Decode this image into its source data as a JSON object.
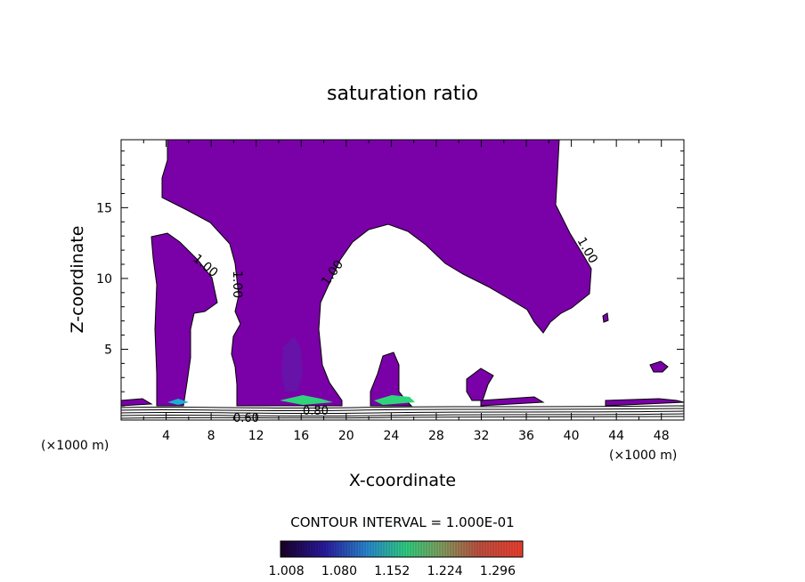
{
  "chart_data": {
    "type": "contour",
    "title": "saturation ratio",
    "xlabel": "X-coordinate",
    "ylabel": "Z-coordinate",
    "x_unit": "(×1000 m)",
    "xlim": [
      0,
      50
    ],
    "ylim": [
      0,
      19.8
    ],
    "x_ticks": [
      4,
      8,
      12,
      16,
      20,
      24,
      28,
      32,
      36,
      40,
      44,
      48
    ],
    "y_ticks": [
      5,
      10,
      15
    ],
    "contour_labels": [
      "1.00",
      "1.00",
      "1.00",
      "1.00",
      "0.60",
      "0.80"
    ],
    "contour_interval_text": "CONTOUR INTERVAL = 1.000E-01",
    "colorbar": {
      "ticks": [
        "1.008",
        "1.080",
        "1.152",
        "1.224",
        "1.296"
      ],
      "min": 1.0,
      "max": 1.33
    },
    "fill_color": "#7a00a8"
  }
}
